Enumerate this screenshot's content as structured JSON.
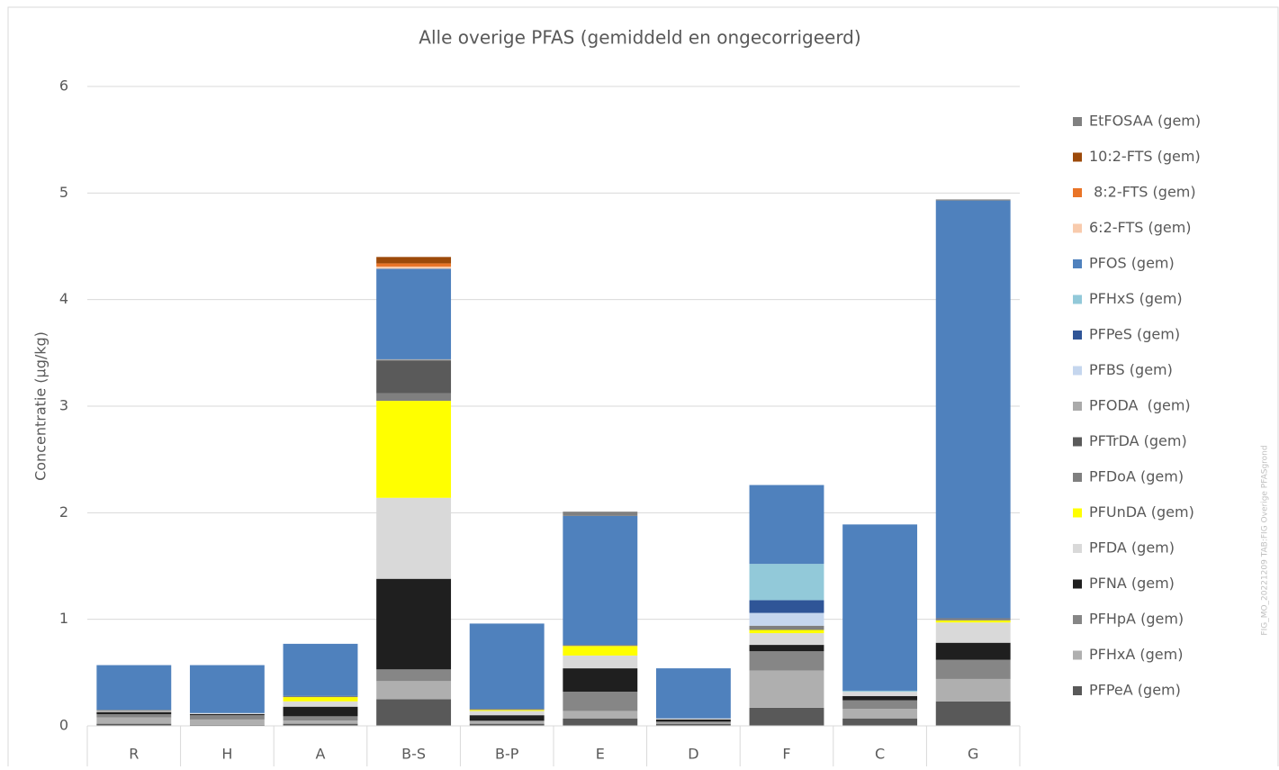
{
  "chart_data": {
    "type": "stacked_bar",
    "title": "Alle overige PFAS (gemiddeld en ongecorrigeerd)",
    "y_label": "Concentratie (µg/kg)",
    "annotation": "FIG_MO_20221209 TAB:FIG Overige PFASgrond",
    "categories": [
      "R",
      "H",
      "A",
      "B-S",
      "B-P",
      "E",
      "D",
      "F",
      "C",
      "G"
    ],
    "ylim": [
      0,
      6
    ],
    "yticks": [
      0,
      1,
      2,
      3,
      4,
      5,
      6
    ],
    "grid": true,
    "legend": "right",
    "series": [
      {
        "name": "PFPeA (gem)",
        "color": "#595959",
        "values": [
          0.02,
          0.01,
          0.02,
          0.25,
          0.02,
          0.07,
          0.02,
          0.17,
          0.07,
          0.23
        ]
      },
      {
        "name": "PFHxA (gem)",
        "color": "#afafaf",
        "values": [
          0.06,
          0.05,
          0.03,
          0.17,
          0.02,
          0.07,
          0.01,
          0.35,
          0.09,
          0.21
        ]
      },
      {
        "name": "PFHpA (gem)",
        "color": "#868686",
        "values": [
          0.03,
          0.04,
          0.04,
          0.11,
          0.01,
          0.18,
          0.01,
          0.18,
          0.08,
          0.18
        ]
      },
      {
        "name": "PFNA (gem)",
        "color": "#1f1f1f",
        "values": [
          0.02,
          0.01,
          0.09,
          0.85,
          0.05,
          0.22,
          0.02,
          0.06,
          0.04,
          0.16
        ]
      },
      {
        "name": "PFDA (gem)",
        "color": "#d9d9d9",
        "values": [
          0.01,
          0.01,
          0.05,
          0.76,
          0.04,
          0.12,
          0.01,
          0.11,
          0.04,
          0.19
        ]
      },
      {
        "name": "PFUnDA (gem)",
        "color": "#ffff00",
        "values": [
          0,
          0,
          0.04,
          0.91,
          0.01,
          0.09,
          0,
          0.03,
          0,
          0.02
        ]
      },
      {
        "name": "PFDoA (gem)",
        "color": "#7f7f7f",
        "values": [
          0.01,
          0,
          0.01,
          0.07,
          0.01,
          0.01,
          0,
          0.04,
          0,
          0.02
        ]
      },
      {
        "name": "PFTrDA (gem)",
        "color": "#5a5a5a",
        "values": [
          0,
          0,
          0,
          0.31,
          0,
          0,
          0,
          0,
          0,
          0
        ]
      },
      {
        "name": "PFODA  (gem)",
        "color": "#aaaaaa",
        "values": [
          0,
          0,
          0,
          0.01,
          0,
          0,
          0,
          0,
          0,
          0
        ]
      },
      {
        "name": "PFBS (gem)",
        "color": "#c5d6ee",
        "values": [
          0,
          0,
          0,
          0,
          0,
          0,
          0,
          0.12,
          0,
          0
        ]
      },
      {
        "name": "PFPeS (gem)",
        "color": "#2f5597",
        "values": [
          0,
          0,
          0,
          0,
          0,
          0,
          0,
          0.12,
          0,
          0
        ]
      },
      {
        "name": "PFHxS (gem)",
        "color": "#92c9d9",
        "values": [
          0,
          0,
          0,
          0,
          0,
          0,
          0,
          0.34,
          0.01,
          0
        ]
      },
      {
        "name": "PFOS (gem)",
        "color": "#4f81bd",
        "values": [
          0.42,
          0.45,
          0.49,
          0.85,
          0.8,
          1.21,
          0.47,
          0.74,
          1.56,
          3.92
        ]
      },
      {
        "name": "6:2-FTS (gem)",
        "color": "#f8cbad",
        "values": [
          0,
          0,
          0,
          0.02,
          0,
          0,
          0,
          0,
          0,
          0
        ]
      },
      {
        "name": " 8:2-FTS (gem)",
        "color": "#e97427",
        "values": [
          0,
          0,
          0,
          0.03,
          0,
          0,
          0,
          0,
          0,
          0
        ]
      },
      {
        "name": "10:2-FTS (gem)",
        "color": "#9c4a0a",
        "values": [
          0,
          0,
          0,
          0.06,
          0,
          0,
          0,
          0,
          0,
          0
        ]
      },
      {
        "name": "EtFOSAA (gem)",
        "color": "#808080",
        "values": [
          0,
          0,
          0,
          0,
          0,
          0.04,
          0,
          0,
          0,
          0.01
        ]
      }
    ]
  }
}
